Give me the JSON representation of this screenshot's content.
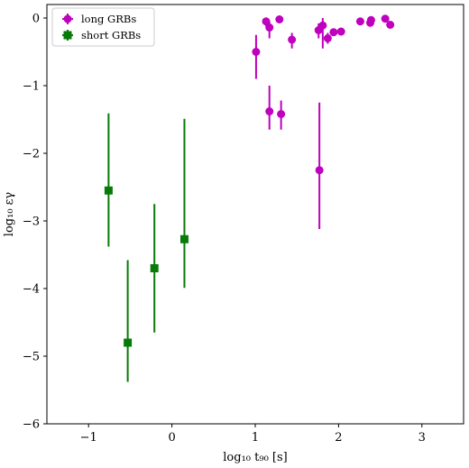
{
  "chart_data": {
    "type": "scatter",
    "xlabel": "log₁₀ t₉₀ [s]",
    "ylabel": "log₁₀ εγ",
    "xlim": [
      -1.5,
      3.5
    ],
    "ylim": [
      -6,
      0.2
    ],
    "xticks": [
      -1,
      0,
      1,
      2,
      3
    ],
    "yticks": [
      -6,
      -5,
      -4,
      -3,
      -2,
      -1,
      0
    ],
    "xtick_labels": [
      "−1",
      "0",
      "1",
      "2",
      "3"
    ],
    "ytick_labels": [
      "−6",
      "−5",
      "−4",
      "−3",
      "−2",
      "−1",
      "0"
    ],
    "grid": false,
    "legend_position": "top-left",
    "series": [
      {
        "name": "long GRBs",
        "marker": "circle",
        "color": "#bf00bf",
        "points": [
          {
            "x": 1.01,
            "y": -0.5,
            "ylo": -0.9,
            "yhi": -0.25
          },
          {
            "x": 1.13,
            "y": -0.05,
            "ylo": -0.12,
            "yhi": 0.0
          },
          {
            "x": 1.17,
            "y": -0.14,
            "ylo": -0.3,
            "yhi": -0.05
          },
          {
            "x": 1.17,
            "y": -1.38,
            "ylo": -1.65,
            "yhi": -1.0
          },
          {
            "x": 1.29,
            "y": -0.02,
            "ylo": -0.07,
            "yhi": 0.0
          },
          {
            "x": 1.31,
            "y": -1.42,
            "ylo": -1.65,
            "yhi": -1.22
          },
          {
            "x": 1.44,
            "y": -0.32,
            "ylo": -0.45,
            "yhi": -0.22
          },
          {
            "x": 1.76,
            "y": -0.18,
            "ylo": -0.3,
            "yhi": -0.08
          },
          {
            "x": 1.77,
            "y": -2.25,
            "ylo": -3.12,
            "yhi": -1.25
          },
          {
            "x": 1.81,
            "y": -0.11,
            "ylo": -0.45,
            "yhi": 0.0
          },
          {
            "x": 1.87,
            "y": -0.3,
            "ylo": -0.38,
            "yhi": -0.22
          },
          {
            "x": 1.94,
            "y": -0.21,
            "ylo": -0.25,
            "yhi": -0.17
          },
          {
            "x": 2.03,
            "y": -0.2,
            "ylo": -0.24,
            "yhi": -0.16
          },
          {
            "x": 2.26,
            "y": -0.05,
            "ylo": -0.08,
            "yhi": -0.02
          },
          {
            "x": 2.38,
            "y": -0.07,
            "ylo": -0.1,
            "yhi": -0.03
          },
          {
            "x": 2.39,
            "y": -0.03,
            "ylo": -0.07,
            "yhi": 0.0
          },
          {
            "x": 2.56,
            "y": -0.01,
            "ylo": -0.05,
            "yhi": 0.0
          },
          {
            "x": 2.62,
            "y": -0.1,
            "ylo": -0.14,
            "yhi": -0.06
          }
        ]
      },
      {
        "name": "short GRBs",
        "marker": "square",
        "color": "#087a08",
        "points": [
          {
            "x": -0.76,
            "y": -2.55,
            "ylo": -3.38,
            "yhi": -1.41
          },
          {
            "x": -0.53,
            "y": -4.8,
            "ylo": -5.38,
            "yhi": -3.58
          },
          {
            "x": -0.21,
            "y": -3.7,
            "ylo": -4.65,
            "yhi": -2.75
          },
          {
            "x": 0.15,
            "y": -3.27,
            "ylo": -3.99,
            "yhi": -1.49
          }
        ]
      }
    ]
  }
}
